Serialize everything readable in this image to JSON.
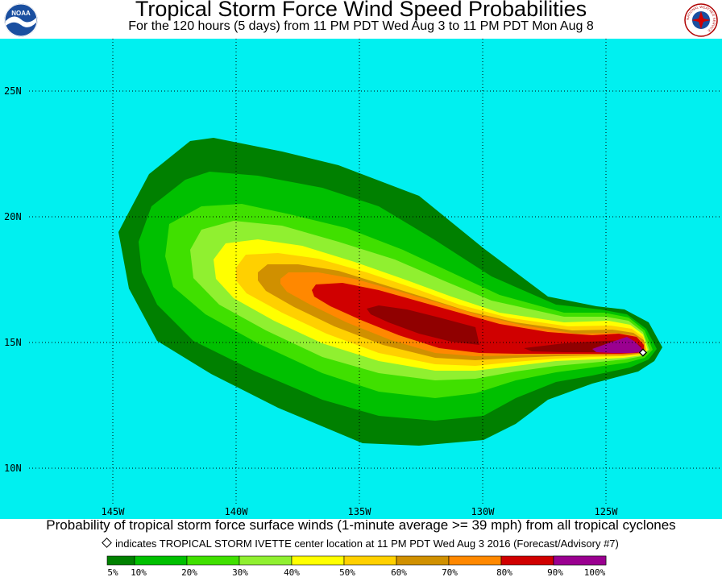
{
  "header": {
    "title": "Tropical Storm Force Wind Speed Probabilities",
    "subtitle": "For the 120 hours (5 days) from 11 PM PDT Wed Aug 3 to 11 PM PDT Mon Aug 8",
    "left_logo_text": "NOAA",
    "right_logo_text": "NATIONAL WEATHER SERVICE"
  },
  "map": {
    "ocean_color": "#00f0f0",
    "longitudes": [
      {
        "value": 145,
        "label": "145W"
      },
      {
        "value": 140,
        "label": "140W"
      },
      {
        "value": 135,
        "label": "135W"
      },
      {
        "value": 130,
        "label": "130W"
      },
      {
        "value": 125,
        "label": "125W"
      }
    ],
    "latitudes": [
      {
        "value": 25,
        "label": "25N"
      },
      {
        "value": 20,
        "label": "20N"
      },
      {
        "value": 15,
        "label": "15N"
      },
      {
        "value": 10,
        "label": "10N"
      }
    ],
    "storm_center": {
      "lon": 123.5,
      "lat": 14.6
    }
  },
  "footer": {
    "description": "Probability of tropical storm force surface winds (1-minute average >= 39 mph) from all tropical cyclones",
    "indicator": "indicates TROPICAL STORM IVETTE center location at 11 PM PDT Wed Aug 3 2016 (Forecast/Advisory #7)"
  },
  "legend": {
    "colors": [
      "#008000",
      "#00c000",
      "#40e000",
      "#90f030",
      "#ffff00",
      "#ffd000",
      "#d09000",
      "#ff8800",
      "#d00000",
      "#900000",
      "#9a0090"
    ],
    "labels": [
      "5%",
      "10%",
      "20%",
      "30%",
      "40%",
      "50%",
      "60%",
      "70%",
      "80%",
      "90%",
      "100%"
    ]
  }
}
